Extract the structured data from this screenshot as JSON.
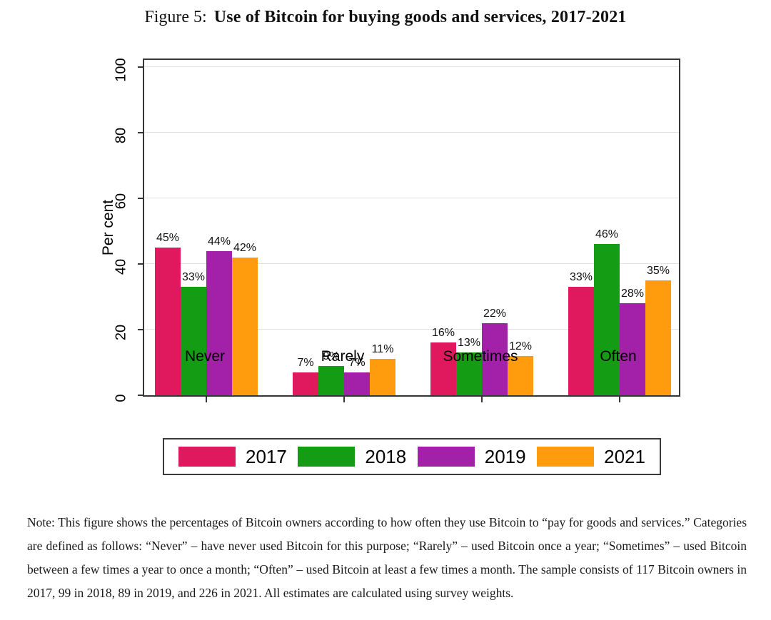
{
  "title": {
    "prefix": "Figure 5:",
    "main": "Use of Bitcoin for buying goods and services, 2017-2021"
  },
  "chart_data": {
    "type": "bar",
    "title": "Use of Bitcoin for buying goods and services, 2017-2021",
    "categories": [
      "Never",
      "Rarely",
      "Sometimes",
      "Often"
    ],
    "series": [
      {
        "name": "2017",
        "color": "#e0195f",
        "values": [
          45,
          7,
          16,
          33
        ]
      },
      {
        "name": "2018",
        "color": "#159c15",
        "values": [
          33,
          9,
          13,
          46
        ]
      },
      {
        "name": "2019",
        "color": "#a320a8",
        "values": [
          44,
          7,
          22,
          28
        ]
      },
      {
        "name": "2021",
        "color": "#ff9c0d",
        "values": [
          42,
          11,
          12,
          35
        ]
      }
    ],
    "value_suffix": "%",
    "xlabel": "",
    "ylabel": "Per cent",
    "yticks": [
      0,
      20,
      40,
      60,
      80,
      100
    ],
    "ylim": [
      0,
      100
    ],
    "grid": true,
    "grid_color": "#e2e2e2",
    "legend_position": "bottom",
    "legend_entries": [
      "2017",
      "2018",
      "2019",
      "2021"
    ]
  },
  "note": "Note: This figure shows the percentages of Bitcoin owners according to how often they use Bitcoin to “pay for goods and services.” Categories are defined as follows: “Never” – have never used Bitcoin for this purpose; “Rarely” – used Bitcoin once a year; “Sometimes” – used Bitcoin between a few times a year to once a month; “Often” – used Bitcoin at least a few times a month. The sample consists of 117 Bitcoin owners in 2017, 99 in 2018, 89 in 2019, and 226 in 2021. All estimates are calculated using survey weights."
}
